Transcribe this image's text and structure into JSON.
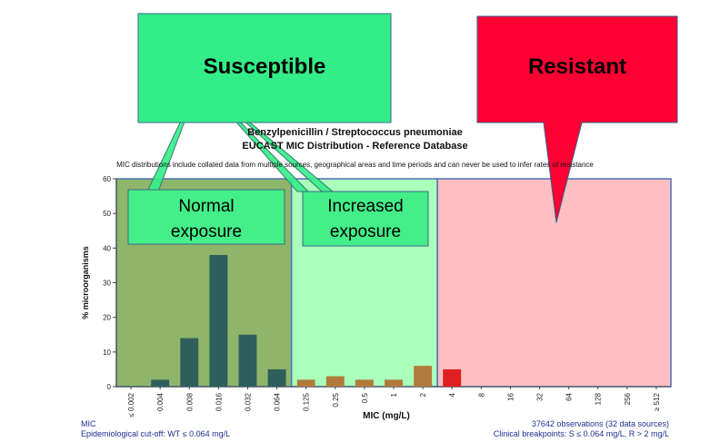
{
  "chart_data": {
    "type": "bar",
    "title": "Benzylpenicillin / Streptococcus pneumoniae",
    "subtitle": "EUCAST MIC Distribution - Reference Database",
    "disclaimer": "MIC distributions include collated data from multiple sources, geographical areas and time periods and can never be used to infer rates of resistance",
    "xlabel": "MIC (mg/L)",
    "ylabel": "% microorganisms",
    "ylim": [
      0,
      60
    ],
    "yticks": [
      "0",
      "10",
      "20",
      "30",
      "40",
      "50",
      "60"
    ],
    "categories": [
      "≤ 0.002",
      "0.004",
      "0.008",
      "0.016",
      "0.032",
      "0.064",
      "0.125",
      "0.25",
      "0.5",
      "1",
      "2",
      "4",
      "8",
      "16",
      "32",
      "64",
      "128",
      "256",
      "≥ 512"
    ],
    "values": [
      0,
      2,
      14,
      38,
      15,
      5,
      2,
      3,
      2,
      2,
      6,
      5,
      0,
      0,
      0,
      0,
      0,
      0,
      0
    ],
    "bar_colors": {
      "normal": "#2f5f5c",
      "increased": "#b07a3a",
      "resistant": "#e02020"
    },
    "zones": [
      {
        "name": "normal-exposure",
        "from_index": 0,
        "to_index": 5,
        "color": "#8fb56a"
      },
      {
        "name": "increased-exposure",
        "from_index": 6,
        "to_index": 10,
        "color": "#aaffbb"
      },
      {
        "name": "resistant",
        "from_index": 11,
        "to_index": 18,
        "color": "#ffbfc3"
      }
    ],
    "grid": false,
    "footer": {
      "left_line1": "MIC",
      "left_line2": "Epidemiological cut-off: WT ≤ 0.064 mg/L",
      "right_line1": "37642 observations (32 data sources)",
      "right_line2": "Clinical breakpoints: S ≤ 0.064 mg/L, R > 2 mg/L"
    }
  },
  "annotations": {
    "susceptible": {
      "label": "Susceptible",
      "color": "#33ee88"
    },
    "resistant": {
      "label": "Resistant",
      "color": "#ff0033"
    },
    "normal_exposure": {
      "line1": "Normal",
      "line2": "exposure",
      "color": "#44ee88"
    },
    "increased_exposure": {
      "line1": "Increased",
      "line2": "exposure",
      "color": "#44ee88"
    }
  }
}
